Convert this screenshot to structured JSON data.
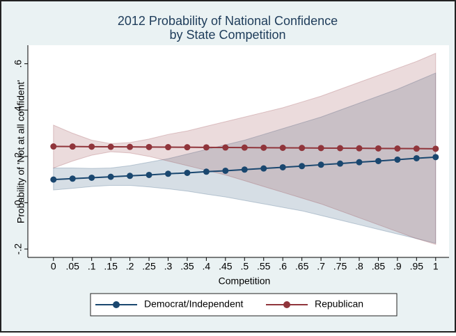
{
  "chart_data": {
    "type": "line",
    "title": [
      "2012 Probability of National Confidence",
      "by State Competition"
    ],
    "x_label": "Competition",
    "y_label": "Probability of 'Not at all confident'",
    "x": [
      0,
      0.05,
      0.1,
      0.15,
      0.2,
      0.25,
      0.3,
      0.35,
      0.4,
      0.45,
      0.5,
      0.55,
      0.6,
      0.65,
      0.7,
      0.75,
      0.8,
      0.85,
      0.9,
      0.95,
      1
    ],
    "xlim": [
      -0.067,
      1.035
    ],
    "xticks": [
      0,
      {
        "value": 0.05,
        "label": ".05"
      },
      {
        "value": 0.1,
        "label": ".1"
      },
      {
        "value": 0.15,
        "label": ".15"
      },
      {
        "value": 0.2,
        "label": ".2"
      },
      {
        "value": 0.25,
        "label": ".25"
      },
      {
        "value": 0.3,
        "label": ".3"
      },
      {
        "value": 0.35,
        "label": ".35"
      },
      {
        "value": 0.4,
        "label": ".4"
      },
      {
        "value": 0.45,
        "label": ".45"
      },
      {
        "value": 0.5,
        "label": ".5"
      },
      {
        "value": 0.55,
        "label": ".55"
      },
      {
        "value": 0.6,
        "label": ".6"
      },
      {
        "value": 0.65,
        "label": ".65"
      },
      {
        "value": 0.7,
        "label": ".7"
      },
      {
        "value": 0.75,
        "label": ".75"
      },
      {
        "value": 0.8,
        "label": ".8"
      },
      {
        "value": 0.85,
        "label": ".85"
      },
      {
        "value": 0.9,
        "label": ".9"
      },
      {
        "value": 0.95,
        "label": ".95"
      },
      1
    ],
    "ylim": [
      -0.236,
      0.68
    ],
    "yticks": [
      {
        "value": -0.2,
        "label": "-.2"
      },
      0,
      {
        "value": 0.2,
        "label": ".2"
      },
      {
        "value": 0.4,
        "label": ".4"
      },
      {
        "value": 0.6,
        "label": ".6"
      }
    ],
    "grid": false,
    "legend": "bottom",
    "series": [
      {
        "name": "Democrat/Independent",
        "color": "#1a476f",
        "values": [
          0.1,
          0.104,
          0.108,
          0.112,
          0.116,
          0.12,
          0.125,
          0.129,
          0.134,
          0.138,
          0.143,
          0.148,
          0.153,
          0.158,
          0.164,
          0.169,
          0.175,
          0.18,
          0.186,
          0.192,
          0.197
        ],
        "upper": [
          0.15,
          0.15,
          0.148,
          0.15,
          0.16,
          0.175,
          0.19,
          0.21,
          0.23,
          0.25,
          0.27,
          0.295,
          0.32,
          0.345,
          0.37,
          0.4,
          0.43,
          0.46,
          0.49,
          0.525,
          0.56
        ],
        "lower": [
          0.055,
          0.062,
          0.07,
          0.075,
          0.075,
          0.068,
          0.06,
          0.05,
          0.037,
          0.025,
          0.01,
          -0.005,
          -0.02,
          -0.035,
          -0.055,
          -0.075,
          -0.095,
          -0.115,
          -0.135,
          -0.155,
          -0.175
        ]
      },
      {
        "name": "Republican",
        "color": "#90353b",
        "values": [
          0.243,
          0.2425,
          0.242,
          0.2415,
          0.241,
          0.2405,
          0.24,
          0.2395,
          0.239,
          0.2385,
          0.238,
          0.2375,
          0.237,
          0.2365,
          0.236,
          0.2355,
          0.235,
          0.2345,
          0.234,
          0.2335,
          0.233
        ],
        "upper": [
          0.335,
          0.3,
          0.27,
          0.255,
          0.26,
          0.275,
          0.295,
          0.31,
          0.33,
          0.35,
          0.37,
          0.39,
          0.41,
          0.435,
          0.46,
          0.49,
          0.52,
          0.55,
          0.58,
          0.61,
          0.645
        ],
        "lower": [
          0.15,
          0.18,
          0.205,
          0.22,
          0.215,
          0.2,
          0.18,
          0.16,
          0.14,
          0.12,
          0.095,
          0.07,
          0.045,
          0.02,
          -0.005,
          -0.035,
          -0.065,
          -0.095,
          -0.125,
          -0.155,
          -0.18
        ]
      }
    ]
  }
}
